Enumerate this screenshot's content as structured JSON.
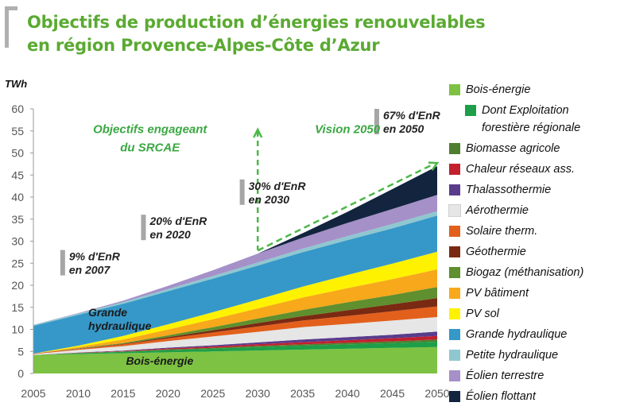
{
  "title_lines": [
    "Objectifs de production d’énergies renouvelables",
    "en région Provence-Alpes-Côte d’Azur"
  ],
  "colors": {
    "title": "#5aaa32",
    "bracket": "#b0b0b0",
    "marker": "#a6a6a6",
    "arrow": "#4cb848"
  },
  "chart_data": {
    "type": "area",
    "stacked": true,
    "ylabel": "TWh",
    "ylim": [
      0,
      60
    ],
    "yticks": [
      0,
      5,
      10,
      15,
      20,
      25,
      30,
      35,
      40,
      45,
      50,
      55,
      60
    ],
    "xlim": [
      2005,
      2050
    ],
    "xticks": [
      2005,
      2010,
      2015,
      2020,
      2025,
      2030,
      2035,
      2040,
      2045,
      2050
    ],
    "x": [
      2005,
      2010,
      2015,
      2020,
      2025,
      2030,
      2035,
      2040,
      2045,
      2050
    ],
    "series": [
      {
        "name": "Bois-énergie",
        "color": "#7dc242",
        "values": [
          4.2,
          4.4,
          4.6,
          4.8,
          5.0,
          5.2,
          5.4,
          5.6,
          5.8,
          6.0
        ]
      },
      {
        "name": "Dont Exploitation forestière régionale",
        "color": "#1e9e48",
        "values": [
          0,
          0.2,
          0.3,
          0.5,
          0.6,
          0.8,
          0.9,
          1.0,
          1.1,
          1.2
        ]
      },
      {
        "name": "Biomasse agricole",
        "color": "#4f7f2e",
        "values": [
          0,
          0.05,
          0.1,
          0.15,
          0.2,
          0.25,
          0.3,
          0.35,
          0.4,
          0.5
        ]
      },
      {
        "name": "Chaleur réseaux ass.",
        "color": "#c2202e",
        "values": [
          0,
          0.05,
          0.1,
          0.2,
          0.3,
          0.4,
          0.5,
          0.6,
          0.7,
          0.8
        ]
      },
      {
        "name": "Thalassothermie",
        "color": "#5a3c8c",
        "values": [
          0,
          0.05,
          0.1,
          0.2,
          0.3,
          0.4,
          0.6,
          0.7,
          0.8,
          1.0
        ]
      },
      {
        "name": "Aérothermie",
        "color": "#e6e6e6",
        "values": [
          0.2,
          0.6,
          1.0,
          1.5,
          2.0,
          2.4,
          2.8,
          3.0,
          3.2,
          3.3
        ]
      },
      {
        "name": "Solaire therm.",
        "color": "#e2601c",
        "values": [
          0.1,
          0.2,
          0.4,
          0.6,
          0.9,
          1.2,
          1.5,
          1.8,
          2.1,
          2.4
        ]
      },
      {
        "name": "Géothermie",
        "color": "#7a2a12",
        "values": [
          0,
          0.05,
          0.1,
          0.3,
          0.5,
          0.8,
          1.0,
          1.3,
          1.6,
          1.9
        ]
      },
      {
        "name": "Biogaz (méthanisation)",
        "color": "#5f8f2e",
        "values": [
          0,
          0.1,
          0.2,
          0.4,
          0.7,
          1.0,
          1.4,
          1.8,
          2.1,
          2.5
        ]
      },
      {
        "name": "PV bâtiment",
        "color": "#f7a81b",
        "values": [
          0,
          0.3,
          0.8,
          1.3,
          1.8,
          2.3,
          2.8,
          3.2,
          3.6,
          4.0
        ]
      },
      {
        "name": "PV sol",
        "color": "#fff200",
        "values": [
          0,
          0.3,
          0.8,
          1.2,
          1.6,
          2.0,
          2.5,
          3.0,
          3.5,
          4.0
        ]
      },
      {
        "name": "Grande hydraulique",
        "color": "#3698c8",
        "values": [
          6.3,
          7.0,
          7.3,
          7.5,
          7.6,
          7.7,
          7.8,
          7.9,
          8.0,
          8.2
        ]
      },
      {
        "name": "Petite hydraulique",
        "color": "#8fc7d0",
        "values": [
          0.2,
          0.3,
          0.4,
          0.5,
          0.6,
          0.7,
          0.8,
          0.9,
          1.0,
          1.0
        ]
      },
      {
        "name": "Éolien terrestre",
        "color": "#a590c8",
        "values": [
          0.05,
          0.1,
          0.3,
          0.7,
          1.3,
          2.0,
          2.5,
          3.0,
          3.4,
          3.7
        ]
      },
      {
        "name": "Éolien flottant",
        "color": "#12243e",
        "values": [
          0,
          0,
          0,
          0,
          0,
          0,
          1.0,
          2.5,
          4.5,
          6.5
        ]
      }
    ],
    "annotations": [
      {
        "year": 2008,
        "value": 28,
        "lines": [
          "9% d'EnR",
          "en 2007"
        ]
      },
      {
        "year": 2017,
        "value": 36,
        "lines": [
          "20% d'EnR",
          "en 2020"
        ]
      },
      {
        "year": 2028,
        "value": 44,
        "lines": [
          "30% d'EnR",
          "en 2030"
        ]
      },
      {
        "year": 2043,
        "value": 60,
        "lines": [
          "67% d'EnR",
          "en 2050"
        ]
      }
    ],
    "phase_labels": [
      {
        "year": 2018,
        "value": 54.5,
        "lines": [
          "Objectifs engageant",
          "du SRCAE"
        ]
      },
      {
        "year": 2040,
        "value": 54.5,
        "lines": [
          "Vision 2050"
        ]
      }
    ],
    "area_labels": [
      {
        "year": 2005.8,
        "value": 13,
        "lines": [
          "Grande",
          "hydraulique"
        ]
      },
      {
        "year": 2010,
        "value": 2,
        "lines": [
          "Bois-énergie"
        ]
      }
    ],
    "divider_year": 2030
  }
}
